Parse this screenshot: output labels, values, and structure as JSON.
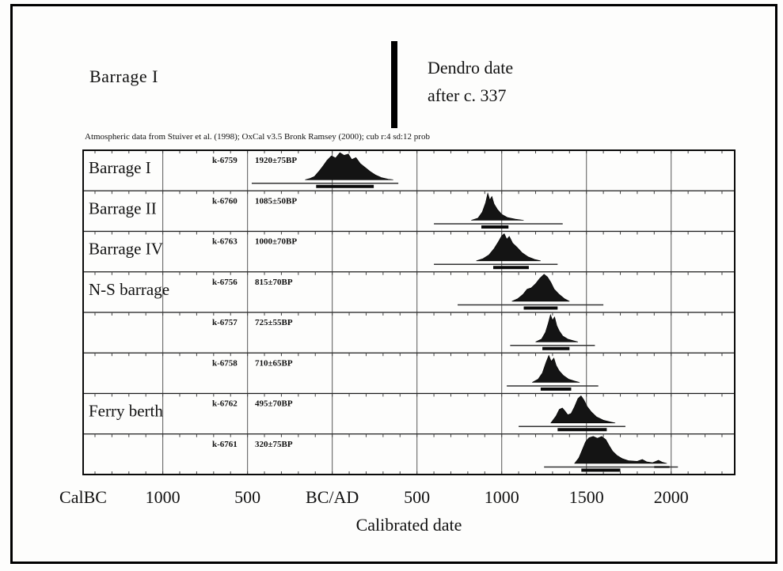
{
  "header": {
    "title": "Barrage I",
    "dendro_line1": "Dendro date",
    "dendro_line2": "after c. 337"
  },
  "plot": {
    "attribution": "Atmospheric data from Stuiver et al. (1998); OxCal v3.5 Bronk Ramsey (2000); cub r:4 sd:12 prob",
    "xlabel": "Calibrated date"
  },
  "chart_data": {
    "type": "area",
    "title": "Barrage I — calibrated radiocarbon dates",
    "xlabel": "Calibrated date",
    "legend": "none",
    "grid": true,
    "x_axis": {
      "unit": "calendar years (negative = CalBC, positive = CalAD)",
      "min": -1470,
      "max": 2375,
      "origin_label": "CalBC",
      "tick_years": [
        -1000,
        -500,
        0,
        500,
        1000,
        1500,
        2000
      ],
      "tick_labels": [
        "1000",
        "500",
        "BC/AD",
        "500",
        "1000",
        "1500",
        "2000"
      ],
      "minor_tick_step": 100
    },
    "samples": [
      {
        "label": "Barrage I",
        "code": "k-6759",
        "bp": "1920±75BP",
        "range_line": [
          -475,
          390
        ],
        "sigma_bar": [
          -95,
          245
        ],
        "extra_dashes": [],
        "shape": [
          [
            -160,
            0
          ],
          [
            -130,
            0.05
          ],
          [
            -105,
            0.12
          ],
          [
            -80,
            0.3
          ],
          [
            -55,
            0.5
          ],
          [
            -30,
            0.72
          ],
          [
            -5,
            0.88
          ],
          [
            20,
            0.8
          ],
          [
            45,
            1.0
          ],
          [
            70,
            0.9
          ],
          [
            95,
            0.95
          ],
          [
            115,
            0.75
          ],
          [
            140,
            0.82
          ],
          [
            165,
            0.6
          ],
          [
            195,
            0.45
          ],
          [
            225,
            0.3
          ],
          [
            255,
            0.18
          ],
          [
            290,
            0.08
          ],
          [
            330,
            0.02
          ],
          [
            360,
            0
          ]
        ]
      },
      {
        "label": "Barrage II",
        "code": "k-6760",
        "bp": "1085±50BP",
        "range_line": [
          600,
          1360
        ],
        "sigma_bar": [
          880,
          1040
        ],
        "extra_dashes": [],
        "shape": [
          [
            820,
            0
          ],
          [
            860,
            0.08
          ],
          [
            885,
            0.3
          ],
          [
            905,
            0.65
          ],
          [
            918,
            1.0
          ],
          [
            930,
            0.75
          ],
          [
            942,
            0.88
          ],
          [
            955,
            0.6
          ],
          [
            975,
            0.4
          ],
          [
            1000,
            0.22
          ],
          [
            1035,
            0.1
          ],
          [
            1080,
            0.04
          ],
          [
            1130,
            0
          ]
        ]
      },
      {
        "label": "Barrage IV",
        "code": "k-6763",
        "bp": "1000±70BP",
        "range_line": [
          600,
          1330
        ],
        "sigma_bar": [
          950,
          1160
        ],
        "extra_dashes": [],
        "shape": [
          [
            850,
            0
          ],
          [
            890,
            0.08
          ],
          [
            925,
            0.22
          ],
          [
            955,
            0.45
          ],
          [
            980,
            0.7
          ],
          [
            1000,
            0.92
          ],
          [
            1015,
            1.0
          ],
          [
            1030,
            0.8
          ],
          [
            1045,
            0.9
          ],
          [
            1065,
            0.65
          ],
          [
            1090,
            0.5
          ],
          [
            1120,
            0.3
          ],
          [
            1155,
            0.15
          ],
          [
            1195,
            0.05
          ],
          [
            1230,
            0
          ]
        ]
      },
      {
        "label": "N-S barrage",
        "code": "k-6756",
        "bp": "815±70BP",
        "range_line": [
          740,
          1600
        ],
        "sigma_bar": [
          1130,
          1330
        ],
        "extra_dashes": [],
        "shape": [
          [
            1060,
            0
          ],
          [
            1095,
            0.1
          ],
          [
            1125,
            0.25
          ],
          [
            1150,
            0.45
          ],
          [
            1175,
            0.5
          ],
          [
            1200,
            0.65
          ],
          [
            1225,
            0.85
          ],
          [
            1250,
            1.0
          ],
          [
            1270,
            0.9
          ],
          [
            1290,
            0.7
          ],
          [
            1310,
            0.45
          ],
          [
            1340,
            0.25
          ],
          [
            1370,
            0.1
          ],
          [
            1400,
            0
          ]
        ]
      },
      {
        "label": "",
        "code": "k-6757",
        "bp": "725±55BP",
        "range_line": [
          1050,
          1550
        ],
        "sigma_bar": [
          1240,
          1400
        ],
        "extra_dashes": [],
        "shape": [
          [
            1200,
            0
          ],
          [
            1235,
            0.1
          ],
          [
            1258,
            0.35
          ],
          [
            1275,
            0.7
          ],
          [
            1288,
            1.0
          ],
          [
            1300,
            0.8
          ],
          [
            1312,
            0.92
          ],
          [
            1325,
            0.6
          ],
          [
            1340,
            0.4
          ],
          [
            1360,
            0.22
          ],
          [
            1390,
            0.1
          ],
          [
            1425,
            0.04
          ],
          [
            1450,
            0
          ]
        ]
      },
      {
        "label": "",
        "code": "k-6758",
        "bp": "710±65BP",
        "range_line": [
          1030,
          1570
        ],
        "sigma_bar": [
          1230,
          1410
        ],
        "extra_dashes": [],
        "shape": [
          [
            1180,
            0
          ],
          [
            1215,
            0.12
          ],
          [
            1240,
            0.35
          ],
          [
            1262,
            0.75
          ],
          [
            1278,
            1.0
          ],
          [
            1292,
            0.78
          ],
          [
            1308,
            0.9
          ],
          [
            1322,
            0.62
          ],
          [
            1340,
            0.42
          ],
          [
            1365,
            0.25
          ],
          [
            1395,
            0.12
          ],
          [
            1430,
            0.05
          ],
          [
            1460,
            0
          ]
        ]
      },
      {
        "label": "Ferry berth",
        "code": "k-6762",
        "bp": "495±70BP",
        "range_line": [
          1100,
          1730
        ],
        "sigma_bar": [
          1330,
          1620
        ],
        "extra_dashes": [],
        "shape": [
          [
            1290,
            0
          ],
          [
            1320,
            0.25
          ],
          [
            1340,
            0.5
          ],
          [
            1358,
            0.55
          ],
          [
            1372,
            0.45
          ],
          [
            1390,
            0.3
          ],
          [
            1410,
            0.35
          ],
          [
            1430,
            0.6
          ],
          [
            1450,
            0.9
          ],
          [
            1468,
            1.0
          ],
          [
            1485,
            0.85
          ],
          [
            1505,
            0.6
          ],
          [
            1530,
            0.4
          ],
          [
            1560,
            0.22
          ],
          [
            1600,
            0.1
          ],
          [
            1645,
            0.03
          ],
          [
            1670,
            0
          ]
        ]
      },
      {
        "label": "",
        "code": "k-6761",
        "bp": "320±75BP",
        "range_line": [
          1250,
          2040
        ],
        "sigma_bar": [
          1470,
          1700
        ],
        "extra_dashes": [
          [
            1900,
            1990
          ]
        ],
        "shape": [
          [
            1430,
            0
          ],
          [
            1455,
            0.2
          ],
          [
            1475,
            0.5
          ],
          [
            1495,
            0.8
          ],
          [
            1515,
            0.95
          ],
          [
            1540,
            1.0
          ],
          [
            1565,
            0.93
          ],
          [
            1590,
            1.0
          ],
          [
            1615,
            0.88
          ],
          [
            1635,
            0.65
          ],
          [
            1655,
            0.45
          ],
          [
            1680,
            0.3
          ],
          [
            1710,
            0.18
          ],
          [
            1750,
            0.1
          ],
          [
            1800,
            0.08
          ],
          [
            1830,
            0.15
          ],
          [
            1855,
            0.06
          ],
          [
            1890,
            0.03
          ],
          [
            1925,
            0.12
          ],
          [
            1950,
            0.04
          ],
          [
            1975,
            0
          ]
        ]
      }
    ]
  }
}
